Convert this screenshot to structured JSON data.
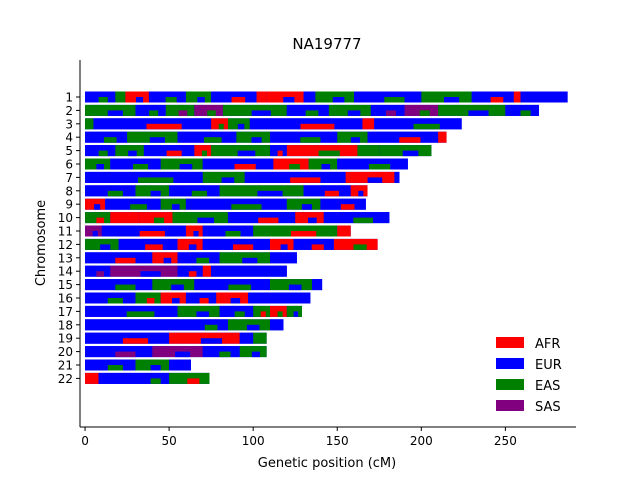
{
  "chart_data": {
    "type": "bar",
    "orientation": "horizontal",
    "title": "NA19777",
    "xlabel": "Genetic position (cM)",
    "ylabel": "Chromosome",
    "xlim": [
      -3,
      292
    ],
    "xticks": [
      0,
      50,
      100,
      150,
      200,
      250
    ],
    "categories": [
      "1",
      "2",
      "3",
      "4",
      "5",
      "6",
      "7",
      "8",
      "9",
      "10",
      "11",
      "12",
      "13",
      "14",
      "15",
      "16",
      "17",
      "18",
      "19",
      "20",
      "21",
      "22"
    ],
    "chromosome_lengths": [
      287,
      270,
      224,
      215,
      206,
      192,
      187,
      168,
      167,
      181,
      158,
      174,
      126,
      120,
      141,
      134,
      129,
      118,
      108,
      108,
      63,
      74
    ],
    "legend": {
      "position": "lower-right",
      "entries": [
        {
          "name": "AFR",
          "color": "#ff0000"
        },
        {
          "name": "EUR",
          "color": "#0000ff"
        },
        {
          "name": "EAS",
          "color": "#008000"
        },
        {
          "name": "SAS",
          "color": "#800080"
        }
      ]
    },
    "segments": {
      "1": [
        [
          0,
          18,
          "EUR"
        ],
        [
          18,
          24,
          "EAS"
        ],
        [
          24,
          38,
          "RED"
        ],
        [
          38,
          60,
          "EUR"
        ],
        [
          60,
          75,
          "EAS"
        ],
        [
          75,
          102,
          "EUR"
        ],
        [
          102,
          108,
          "RED"
        ],
        [
          108,
          130,
          "RED"
        ],
        [
          130,
          137,
          "EUR"
        ],
        [
          137,
          160,
          "EAS"
        ],
        [
          160,
          200,
          "EUR"
        ],
        [
          200,
          230,
          "EAS"
        ],
        [
          230,
          255,
          "EUR"
        ],
        [
          255,
          259,
          "RED"
        ],
        [
          259,
          287,
          "EUR"
        ]
      ],
      "2": [
        [
          0,
          30,
          "EAS"
        ],
        [
          30,
          48,
          "EUR"
        ],
        [
          48,
          65,
          "EAS"
        ],
        [
          65,
          82,
          "SAS"
        ],
        [
          82,
          120,
          "EAS"
        ],
        [
          120,
          145,
          "EUR"
        ],
        [
          145,
          170,
          "EAS"
        ],
        [
          170,
          190,
          "EUR"
        ],
        [
          190,
          210,
          "SAS"
        ],
        [
          210,
          250,
          "EAS"
        ],
        [
          250,
          270,
          "EUR"
        ]
      ],
      "3": [
        [
          0,
          5,
          "EAS"
        ],
        [
          5,
          75,
          "EUR"
        ],
        [
          75,
          85,
          "RED"
        ],
        [
          85,
          98,
          "EAS"
        ],
        [
          98,
          165,
          "EUR"
        ],
        [
          165,
          172,
          "RED"
        ],
        [
          172,
          224,
          "EUR"
        ]
      ],
      "4": [
        [
          0,
          25,
          "EUR"
        ],
        [
          25,
          55,
          "EAS"
        ],
        [
          55,
          90,
          "EUR"
        ],
        [
          90,
          110,
          "EAS"
        ],
        [
          110,
          150,
          "EUR"
        ],
        [
          150,
          168,
          "EAS"
        ],
        [
          168,
          210,
          "EUR"
        ],
        [
          210,
          215,
          "RED"
        ]
      ],
      "5": [
        [
          0,
          18,
          "EUR"
        ],
        [
          18,
          35,
          "EAS"
        ],
        [
          35,
          65,
          "EUR"
        ],
        [
          65,
          75,
          "RED"
        ],
        [
          75,
          110,
          "EAS"
        ],
        [
          110,
          120,
          "EUR"
        ],
        [
          120,
          162,
          "RED"
        ],
        [
          162,
          175,
          "EAS"
        ],
        [
          175,
          206,
          "EAS"
        ]
      ],
      "6": [
        [
          0,
          15,
          "EAS"
        ],
        [
          15,
          45,
          "EUR"
        ],
        [
          45,
          70,
          "EAS"
        ],
        [
          70,
          112,
          "EUR"
        ],
        [
          112,
          133,
          "RED"
        ],
        [
          133,
          150,
          "EAS"
        ],
        [
          150,
          192,
          "EUR"
        ]
      ],
      "7": [
        [
          0,
          70,
          "EUR"
        ],
        [
          70,
          95,
          "EAS"
        ],
        [
          95,
          155,
          "EUR"
        ],
        [
          155,
          184,
          "RED"
        ],
        [
          184,
          187,
          "EUR"
        ]
      ],
      "8": [
        [
          0,
          30,
          "EUR"
        ],
        [
          30,
          50,
          "EAS"
        ],
        [
          50,
          80,
          "EUR"
        ],
        [
          80,
          130,
          "EAS"
        ],
        [
          130,
          158,
          "EUR"
        ],
        [
          158,
          168,
          "RED"
        ]
      ],
      "9": [
        [
          0,
          12,
          "RED"
        ],
        [
          12,
          45,
          "EUR"
        ],
        [
          45,
          60,
          "EAS"
        ],
        [
          60,
          120,
          "EUR"
        ],
        [
          120,
          140,
          "EAS"
        ],
        [
          140,
          167,
          "EUR"
        ]
      ],
      "10": [
        [
          0,
          15,
          "EAS"
        ],
        [
          15,
          32,
          "RED"
        ],
        [
          32,
          52,
          "RED"
        ],
        [
          52,
          85,
          "EAS"
        ],
        [
          85,
          125,
          "EUR"
        ],
        [
          125,
          142,
          "RED"
        ],
        [
          142,
          181,
          "EUR"
        ]
      ],
      "11": [
        [
          0,
          10,
          "SAS"
        ],
        [
          10,
          60,
          "EUR"
        ],
        [
          60,
          70,
          "RED"
        ],
        [
          70,
          100,
          "EUR"
        ],
        [
          100,
          150,
          "EAS"
        ],
        [
          150,
          158,
          "RED"
        ]
      ],
      "12": [
        [
          0,
          20,
          "EAS"
        ],
        [
          20,
          55,
          "EUR"
        ],
        [
          55,
          70,
          "RED"
        ],
        [
          70,
          110,
          "EUR"
        ],
        [
          110,
          124,
          "RED"
        ],
        [
          124,
          148,
          "EUR"
        ],
        [
          148,
          174,
          "RED"
        ]
      ],
      "13": [
        [
          0,
          40,
          "EUR"
        ],
        [
          40,
          55,
          "RED"
        ],
        [
          55,
          80,
          "EUR"
        ],
        [
          80,
          110,
          "EAS"
        ],
        [
          110,
          126,
          "EUR"
        ]
      ],
      "14": [
        [
          0,
          15,
          "EUR"
        ],
        [
          15,
          55,
          "SAS"
        ],
        [
          55,
          70,
          "EUR"
        ],
        [
          70,
          75,
          "RED"
        ],
        [
          75,
          95,
          "EUR"
        ],
        [
          95,
          120,
          "EUR"
        ]
      ],
      "15": [
        [
          0,
          40,
          "EUR"
        ],
        [
          40,
          65,
          "EAS"
        ],
        [
          65,
          110,
          "EUR"
        ],
        [
          110,
          135,
          "EAS"
        ],
        [
          135,
          141,
          "EUR"
        ]
      ],
      "16": [
        [
          0,
          30,
          "EUR"
        ],
        [
          30,
          45,
          "EAS"
        ],
        [
          45,
          60,
          "RED"
        ],
        [
          60,
          78,
          "EUR"
        ],
        [
          78,
          97,
          "RED"
        ],
        [
          97,
          120,
          "EUR"
        ],
        [
          120,
          134,
          "EUR"
        ]
      ],
      "17": [
        [
          0,
          55,
          "EUR"
        ],
        [
          55,
          80,
          "EAS"
        ],
        [
          80,
          100,
          "EUR"
        ],
        [
          100,
          110,
          "EAS"
        ],
        [
          110,
          120,
          "RED"
        ],
        [
          120,
          129,
          "EAS"
        ]
      ],
      "18": [
        [
          0,
          60,
          "EUR"
        ],
        [
          60,
          85,
          "EUR"
        ],
        [
          85,
          110,
          "EAS"
        ],
        [
          110,
          118,
          "EUR"
        ]
      ],
      "19": [
        [
          0,
          50,
          "EUR"
        ],
        [
          50,
          92,
          "RED"
        ],
        [
          92,
          100,
          "EUR"
        ],
        [
          100,
          108,
          "EAS"
        ]
      ],
      "20": [
        [
          0,
          40,
          "EUR"
        ],
        [
          40,
          70,
          "SAS"
        ],
        [
          70,
          92,
          "EUR"
        ],
        [
          92,
          108,
          "EAS"
        ]
      ],
      "21": [
        [
          0,
          30,
          "EUR"
        ],
        [
          30,
          50,
          "EAS"
        ],
        [
          50,
          63,
          "EUR"
        ]
      ],
      "22": [
        [
          0,
          8,
          "RED"
        ],
        [
          8,
          30,
          "EUR"
        ],
        [
          30,
          50,
          "EUR"
        ],
        [
          50,
          74,
          "EAS"
        ]
      ]
    }
  }
}
